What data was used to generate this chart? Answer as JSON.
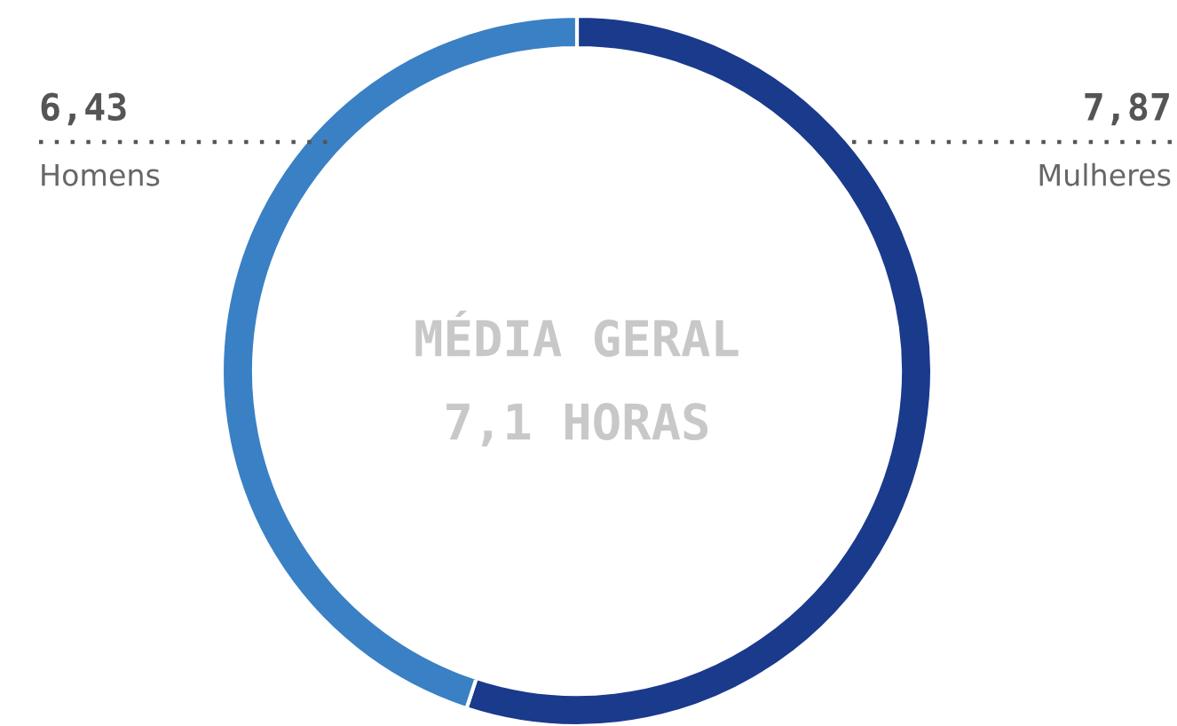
{
  "chart_data": {
    "type": "donut",
    "categories": [
      "Mulheres",
      "Homens"
    ],
    "values": [
      7.87,
      6.43
    ],
    "colors": [
      "#1a3a8c",
      "#3a80c4"
    ],
    "value_labels": [
      "7,87",
      "6,43"
    ],
    "annotations": [
      "MÉDIA GERAL",
      "7,1 HORAS"
    ]
  }
}
